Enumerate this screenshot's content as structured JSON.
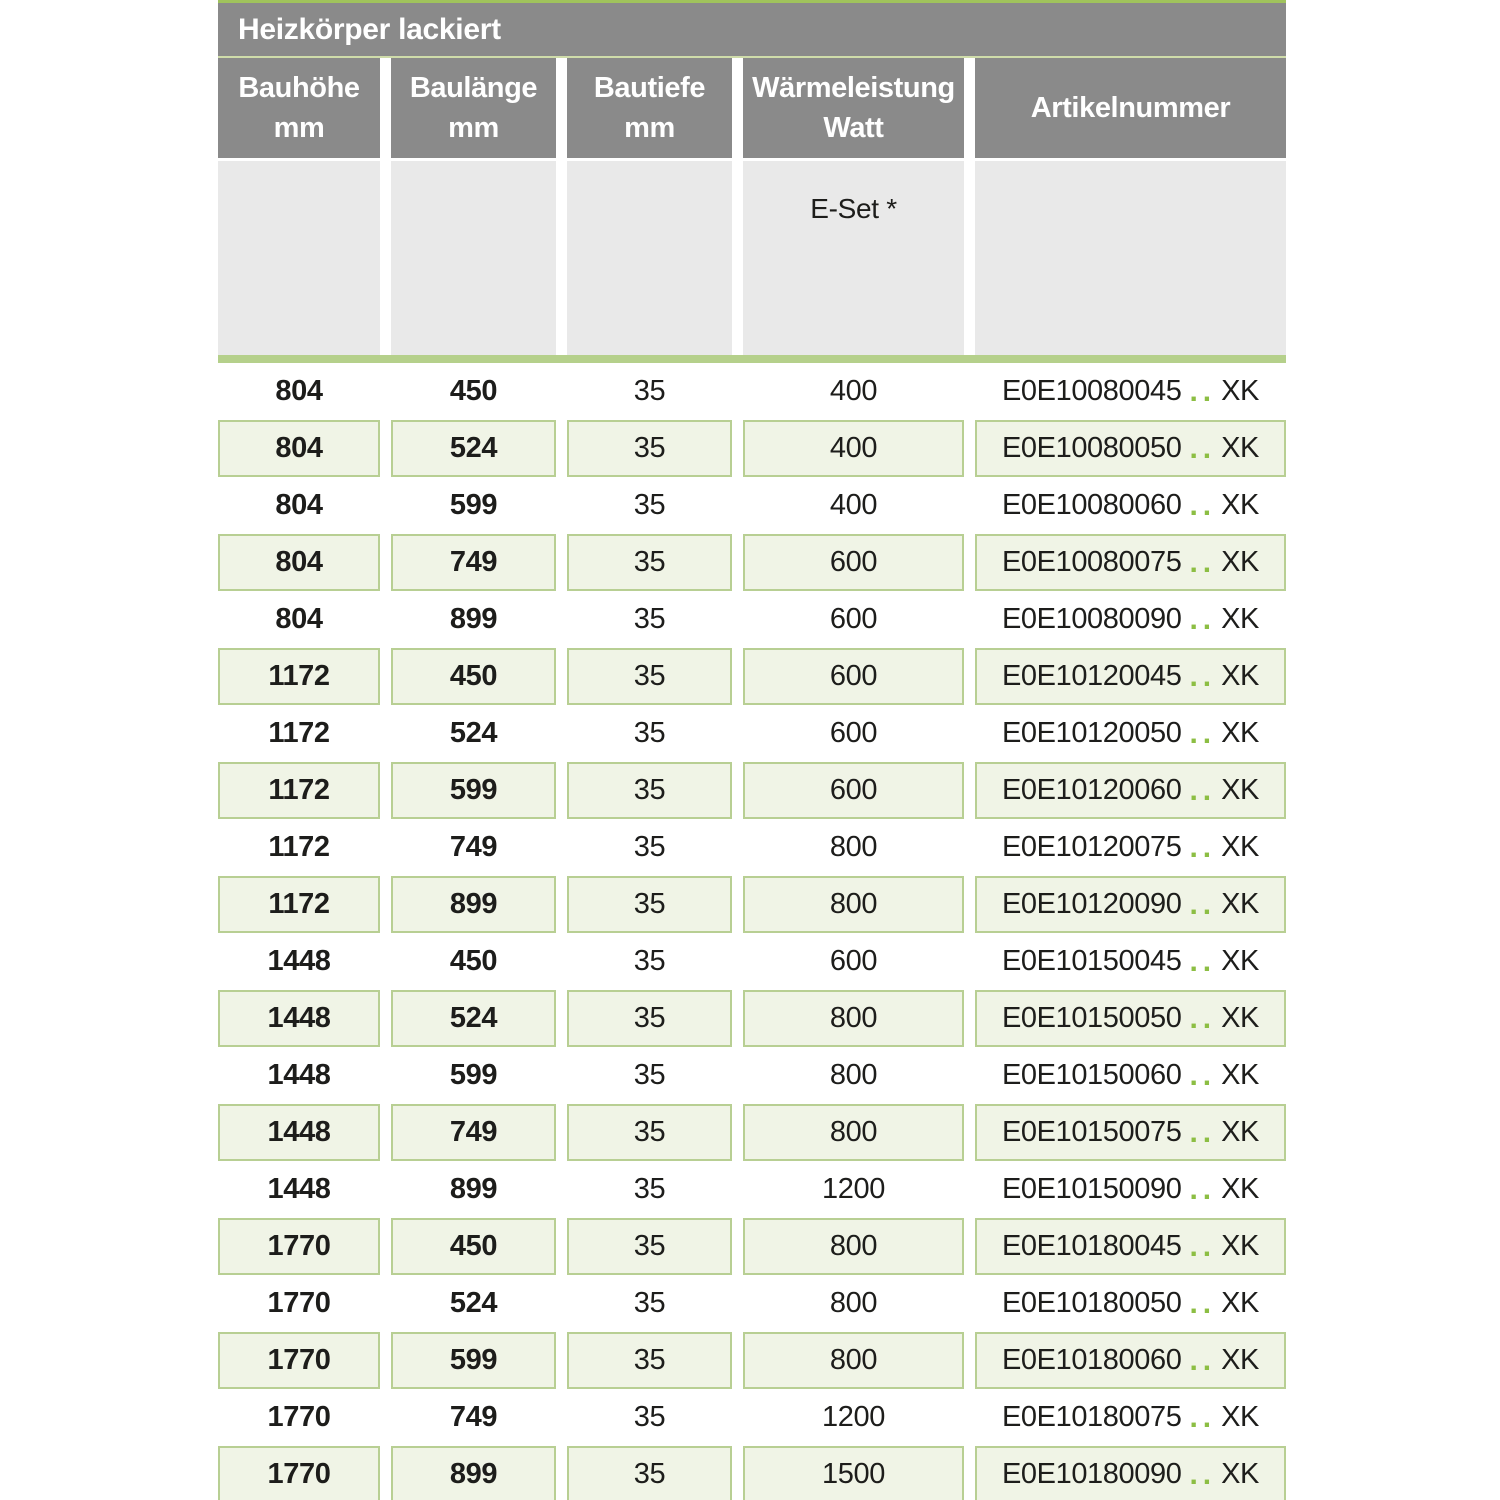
{
  "table": {
    "title": "Heizkörper lackiert",
    "columns": [
      {
        "line1": "Bauhöhe",
        "line2": "mm"
      },
      {
        "line1": "Baulänge",
        "line2": "mm"
      },
      {
        "line1": "Bautiefe",
        "line2": "mm"
      },
      {
        "line1": "Wärmeleistung",
        "line2": "Watt"
      },
      {
        "line1": "Artikelnummer",
        "line2": ""
      }
    ],
    "subheader": {
      "eset_label": "E-Set *"
    },
    "colors": {
      "header_gray": "#8a8a8a",
      "top_rule_green": "#a0c35c",
      "title_separator_green": "#cfdcaa",
      "subheader_gray": "#e9e9e9",
      "thick_rule_green": "#b5d08b",
      "row_fill_green": "#f0f4e6",
      "row_border_green": "#b8cf93",
      "artikel_dots_green": "#8cbe43",
      "text": "#1d1d1b"
    },
    "rows": [
      {
        "bauhoehe": "804",
        "baulaenge": "450",
        "bautiefe": "35",
        "watt": "400",
        "artikel_code": "E0E10080045",
        "artikel_dots": "..",
        "artikel_suffix": "XK",
        "shaded": false
      },
      {
        "bauhoehe": "804",
        "baulaenge": "524",
        "bautiefe": "35",
        "watt": "400",
        "artikel_code": "E0E10080050",
        "artikel_dots": "..",
        "artikel_suffix": "XK",
        "shaded": true
      },
      {
        "bauhoehe": "804",
        "baulaenge": "599",
        "bautiefe": "35",
        "watt": "400",
        "artikel_code": "E0E10080060",
        "artikel_dots": "..",
        "artikel_suffix": "XK",
        "shaded": false
      },
      {
        "bauhoehe": "804",
        "baulaenge": "749",
        "bautiefe": "35",
        "watt": "600",
        "artikel_code": "E0E10080075",
        "artikel_dots": "..",
        "artikel_suffix": "XK",
        "shaded": true
      },
      {
        "bauhoehe": "804",
        "baulaenge": "899",
        "bautiefe": "35",
        "watt": "600",
        "artikel_code": "E0E10080090",
        "artikel_dots": "..",
        "artikel_suffix": "XK",
        "shaded": false
      },
      {
        "bauhoehe": "1172",
        "baulaenge": "450",
        "bautiefe": "35",
        "watt": "600",
        "artikel_code": "E0E10120045",
        "artikel_dots": "..",
        "artikel_suffix": "XK",
        "shaded": true
      },
      {
        "bauhoehe": "1172",
        "baulaenge": "524",
        "bautiefe": "35",
        "watt": "600",
        "artikel_code": "E0E10120050",
        "artikel_dots": "..",
        "artikel_suffix": "XK",
        "shaded": false
      },
      {
        "bauhoehe": "1172",
        "baulaenge": "599",
        "bautiefe": "35",
        "watt": "600",
        "artikel_code": "E0E10120060",
        "artikel_dots": "..",
        "artikel_suffix": "XK",
        "shaded": true
      },
      {
        "bauhoehe": "1172",
        "baulaenge": "749",
        "bautiefe": "35",
        "watt": "800",
        "artikel_code": "E0E10120075",
        "artikel_dots": "..",
        "artikel_suffix": "XK",
        "shaded": false
      },
      {
        "bauhoehe": "1172",
        "baulaenge": "899",
        "bautiefe": "35",
        "watt": "800",
        "artikel_code": "E0E10120090",
        "artikel_dots": "..",
        "artikel_suffix": "XK",
        "shaded": true
      },
      {
        "bauhoehe": "1448",
        "baulaenge": "450",
        "bautiefe": "35",
        "watt": "600",
        "artikel_code": "E0E10150045",
        "artikel_dots": "..",
        "artikel_suffix": "XK",
        "shaded": false
      },
      {
        "bauhoehe": "1448",
        "baulaenge": "524",
        "bautiefe": "35",
        "watt": "800",
        "artikel_code": "E0E10150050",
        "artikel_dots": "..",
        "artikel_suffix": "XK",
        "shaded": true
      },
      {
        "bauhoehe": "1448",
        "baulaenge": "599",
        "bautiefe": "35",
        "watt": "800",
        "artikel_code": "E0E10150060",
        "artikel_dots": "..",
        "artikel_suffix": "XK",
        "shaded": false
      },
      {
        "bauhoehe": "1448",
        "baulaenge": "749",
        "bautiefe": "35",
        "watt": "800",
        "artikel_code": "E0E10150075",
        "artikel_dots": "..",
        "artikel_suffix": "XK",
        "shaded": true
      },
      {
        "bauhoehe": "1448",
        "baulaenge": "899",
        "bautiefe": "35",
        "watt": "1200",
        "artikel_code": "E0E10150090",
        "artikel_dots": "..",
        "artikel_suffix": "XK",
        "shaded": false
      },
      {
        "bauhoehe": "1770",
        "baulaenge": "450",
        "bautiefe": "35",
        "watt": "800",
        "artikel_code": "E0E10180045",
        "artikel_dots": "..",
        "artikel_suffix": "XK",
        "shaded": true
      },
      {
        "bauhoehe": "1770",
        "baulaenge": "524",
        "bautiefe": "35",
        "watt": "800",
        "artikel_code": "E0E10180050",
        "artikel_dots": "..",
        "artikel_suffix": "XK",
        "shaded": false
      },
      {
        "bauhoehe": "1770",
        "baulaenge": "599",
        "bautiefe": "35",
        "watt": "800",
        "artikel_code": "E0E10180060",
        "artikel_dots": "..",
        "artikel_suffix": "XK",
        "shaded": true
      },
      {
        "bauhoehe": "1770",
        "baulaenge": "749",
        "bautiefe": "35",
        "watt": "1200",
        "artikel_code": "E0E10180075",
        "artikel_dots": "..",
        "artikel_suffix": "XK",
        "shaded": false
      },
      {
        "bauhoehe": "1770",
        "baulaenge": "899",
        "bautiefe": "35",
        "watt": "1500",
        "artikel_code": "E0E10180090",
        "artikel_dots": "..",
        "artikel_suffix": "XK",
        "shaded": true
      }
    ]
  }
}
